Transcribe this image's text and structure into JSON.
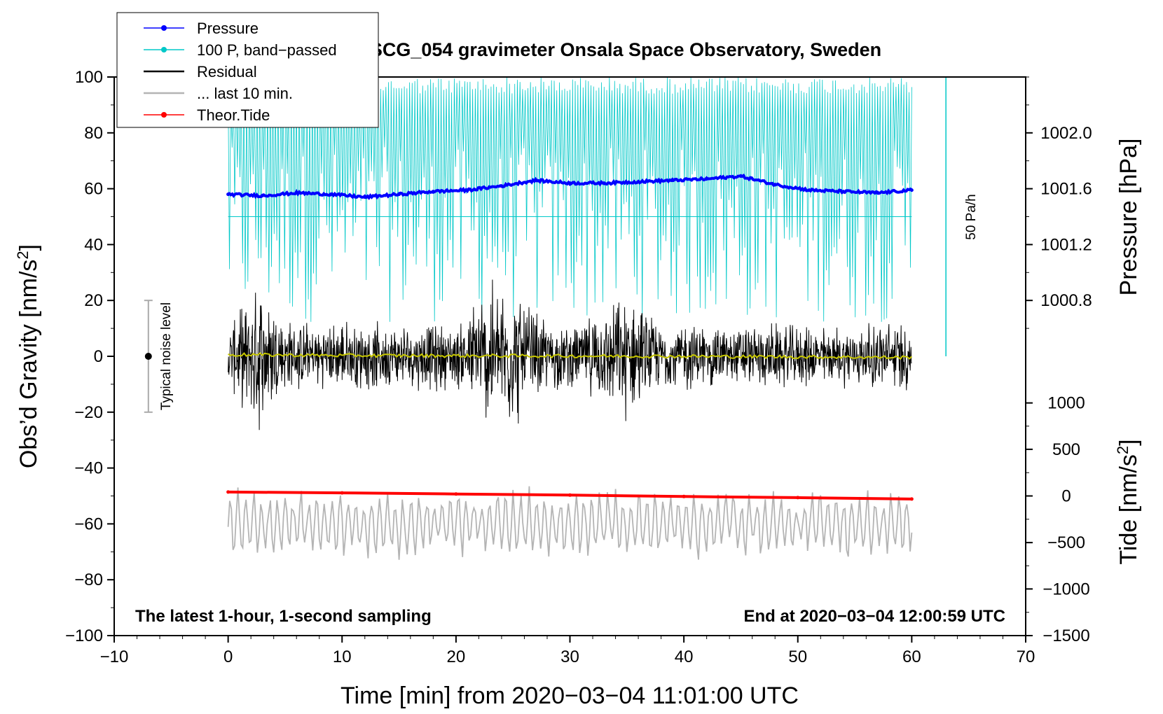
{
  "chart_data": {
    "type": "line",
    "title": "SCG_054 gravimeter Onsala Space Observatory, Sweden",
    "xlabel": "Time [min] from 2020−03−04 11:01:00 UTC",
    "ylabel_prefix": "Obs’d Gravity [nm/s",
    "ylabel_sup": "2",
    "ylabel_suffix": "]",
    "y2_pressure_label": "Pressure [hPa]",
    "y2_tide_prefix": "Tide [nm/s",
    "y2_tide_sup": "2",
    "y2_tide_suffix": "]",
    "xlim": [
      -10,
      70
    ],
    "ylim": [
      -100,
      100
    ],
    "x_ticks": [
      -10,
      0,
      10,
      20,
      30,
      40,
      50,
      60,
      70
    ],
    "x_tick_labels": [
      "−10",
      "0",
      "10",
      "20",
      "30",
      "40",
      "50",
      "60",
      "70"
    ],
    "y_ticks": [
      -100,
      -80,
      -60,
      -40,
      -20,
      0,
      20,
      40,
      60,
      80,
      100
    ],
    "y_tick_labels": [
      "−100",
      "−80",
      "−60",
      "−40",
      "−20",
      "0",
      "20",
      "40",
      "60",
      "80",
      "100"
    ],
    "pressure_axis": {
      "ticks_hpa": [
        1000.8,
        1001.2,
        1001.6,
        1002.0
      ],
      "tick_labels": [
        "1000.8",
        "1001.2",
        "1001.6",
        "1002.0"
      ],
      "gravity_at_ticks": [
        20,
        40,
        60,
        80
      ]
    },
    "tide_axis": {
      "ticks": [
        1000,
        500,
        0,
        -500,
        -1000,
        -1500
      ],
      "tick_labels": [
        "1000",
        "500",
        "0",
        "−500",
        "−1000",
        "−1500"
      ],
      "gravity_at_ticks": [
        -16.7,
        -33.3,
        -50,
        -66.7,
        -83.3,
        -100
      ]
    },
    "bottom_left_note": "The latest 1-hour, 1-second sampling",
    "bottom_right_note": "End at 2020−03−04 12:00:59 UTC",
    "rate_label": "50 Pa/h",
    "rate_bar": {
      "x": 63.0,
      "y_from": 0,
      "y_to": 100
    },
    "bandpass_reference_level": 50,
    "noise_level": {
      "label": "Typical noise level",
      "x": -7,
      "center": 0,
      "low": -20,
      "high": 20
    },
    "legend": [
      {
        "label": "Pressure",
        "color": "#0000ff",
        "marker": true
      },
      {
        "label": "100 P, band−passed",
        "color": "#00c8c8",
        "marker": true
      },
      {
        "label": "Residual",
        "color": "#000000",
        "marker": false
      },
      {
        "label": "... last 10 min.",
        "color": "#b4b4b4",
        "marker": false
      },
      {
        "label": "Theor.Tide",
        "color": "#ff0000",
        "marker": true
      }
    ],
    "series": [
      {
        "name": "Pressure",
        "color": "#0000ff",
        "x": [
          0,
          3,
          6,
          9,
          12,
          15,
          18,
          21,
          24,
          27,
          30,
          33,
          36,
          39,
          42,
          45,
          48,
          51,
          54,
          57,
          60
        ],
        "y": [
          58,
          57.5,
          58.5,
          58,
          57,
          58,
          59,
          59.5,
          61,
          63,
          62,
          62,
          62.5,
          63,
          63.5,
          64.5,
          61.5,
          59.5,
          59,
          58.5,
          59.5
        ]
      },
      {
        "name": "Theor.Tide",
        "color": "#ff0000",
        "x": [
          0,
          10,
          20,
          30,
          40,
          50,
          60
        ],
        "y": [
          -48.6,
          -48.9,
          -49.3,
          -49.7,
          -50.2,
          -50.6,
          -51.1
        ]
      },
      {
        "name": "Residual",
        "color": "#000000",
        "x_range": [
          0,
          60
        ],
        "envelope": {
          "x": [
            0,
            3,
            5,
            8,
            10,
            13,
            15,
            18,
            20,
            23,
            25,
            28,
            30,
            33,
            35,
            38,
            40,
            43,
            45,
            48,
            50,
            53,
            55,
            58,
            60
          ],
          "amplitude": [
            12,
            30,
            15,
            12,
            14,
            13,
            12,
            14,
            12,
            30,
            28,
            14,
            12,
            18,
            25,
            12,
            14,
            12,
            12,
            13,
            12,
            12,
            12,
            14,
            14
          ]
        }
      },
      {
        "name": "Residual (smoothed)",
        "color": "#c8c800",
        "x": [
          0,
          10,
          20,
          30,
          40,
          50,
          60
        ],
        "y": [
          0.6,
          0.3,
          0.2,
          0.1,
          0.0,
          -0.2,
          -0.4
        ]
      },
      {
        "name": "... last 10 min.",
        "color": "#b4b4b4",
        "x_range": [
          0,
          60
        ],
        "center": -60,
        "amplitude": 12
      },
      {
        "name": "100 P, band−passed",
        "color": "#00c8c8",
        "x_range": [
          0,
          60
        ],
        "center": 50,
        "extent": [
          12,
          100
        ]
      }
    ]
  }
}
